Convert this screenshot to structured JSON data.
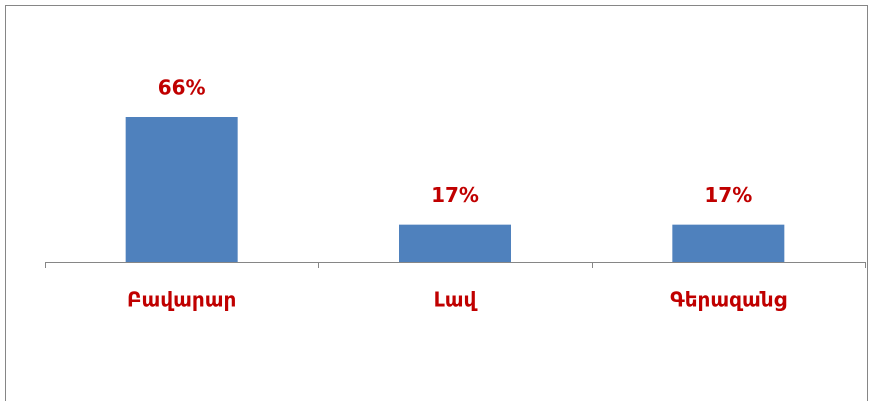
{
  "chart_data": {
    "type": "bar",
    "categories": [
      "Բավարար",
      "Լավ",
      "Գերազանց"
    ],
    "values": [
      66,
      17,
      17
    ],
    "value_labels": [
      "66%",
      "17%",
      "17%"
    ],
    "color": "#4f81bd"
  }
}
